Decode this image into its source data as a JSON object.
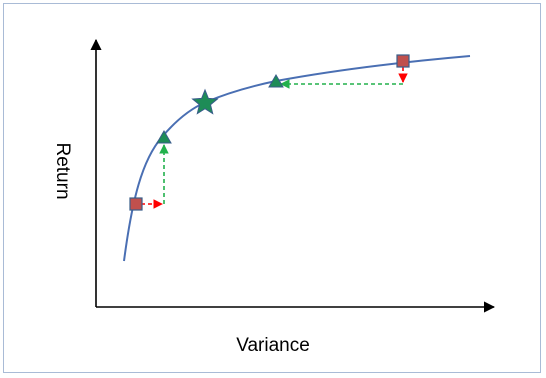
{
  "x_axis_label": "Variance",
  "y_axis_label": "Return",
  "colors": {
    "frame_border": "#a9bbd6",
    "axis": "#000000",
    "frontier_curve": "#4a6fb3",
    "portfolio_square": "#c0504d",
    "portfolio_triangle": "#1e8c57",
    "optimal_star": "#1e8c57",
    "arrow_red": "#ff0000",
    "arrow_green": "#22b14c"
  },
  "icons": {
    "inefficient_portfolio": "square",
    "efficient_portfolio": "triangle",
    "optimal_portfolio": "star"
  }
}
